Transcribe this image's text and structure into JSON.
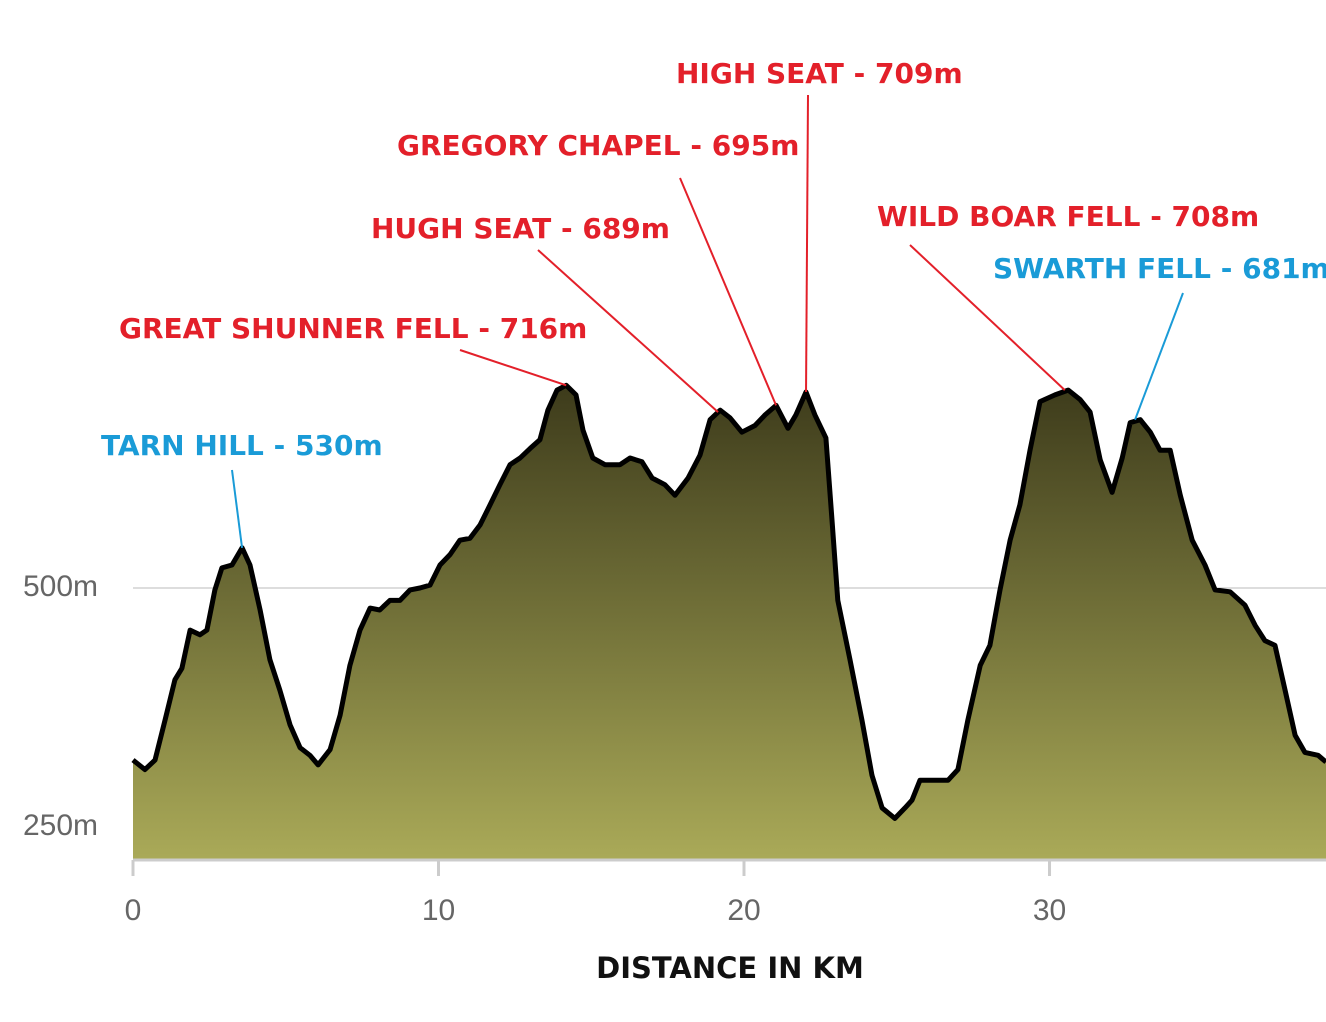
{
  "chart_data": {
    "type": "area",
    "x_label": "DISTANCE IN KM",
    "x": [
      0,
      0.39,
      0.72,
      1.05,
      1.37,
      1.6,
      1.87,
      2.19,
      2.42,
      2.68,
      2.91,
      3.24,
      3.57,
      3.83,
      4.16,
      4.48,
      4.81,
      5.14,
      5.47,
      5.79,
      6.06,
      6.45,
      6.78,
      7.1,
      7.43,
      7.76,
      8.08,
      8.41,
      8.74,
      9.07,
      9.39,
      9.72,
      10.05,
      10.38,
      10.7,
      11.03,
      11.36,
      11.69,
      12.01,
      12.34,
      12.67,
      13.0,
      13.32,
      13.58,
      13.88,
      14.18,
      14.5,
      14.73,
      15.05,
      15.45,
      15.94,
      16.27,
      16.66,
      16.99,
      17.41,
      17.74,
      18.17,
      18.56,
      18.89,
      19.22,
      19.54,
      19.93,
      20.36,
      20.69,
      21.05,
      21.44,
      21.7,
      22.03,
      22.32,
      22.68,
      22.88,
      23.07,
      23.47,
      23.86,
      24.19,
      24.52,
      24.94,
      25.27,
      25.5,
      25.76,
      26.25,
      26.68,
      27.0,
      27.33,
      27.73,
      28.05,
      28.38,
      28.71,
      29.03,
      29.36,
      29.69,
      30.18,
      30.61,
      31.0,
      31.33,
      31.66,
      32.05,
      32.38,
      32.64,
      32.97,
      33.3,
      33.62,
      33.95,
      34.28,
      34.67,
      35.09,
      35.42,
      35.91,
      36.4,
      36.73,
      37.05,
      37.38,
      37.71,
      38.04,
      38.36,
      38.79,
      39.05
    ],
    "values": [
      320,
      310,
      320,
      362,
      404,
      416,
      456,
      451,
      456,
      498,
      521,
      524,
      542,
      524,
      477,
      425,
      393,
      357,
      333,
      325,
      315,
      331,
      367,
      419,
      456,
      479,
      477,
      487,
      487,
      498,
      500,
      503,
      524,
      535,
      550,
      552,
      566,
      587,
      608,
      629,
      636,
      646,
      655,
      686,
      707,
      712,
      702,
      665,
      636,
      629,
      629,
      636,
      632,
      615,
      608,
      597,
      615,
      639,
      676,
      686,
      678,
      663,
      670,
      681,
      691,
      667,
      681,
      705,
      681,
      657,
      571,
      487,
      425,
      362,
      304,
      270,
      259,
      270,
      278,
      299,
      299,
      299,
      310,
      362,
      419,
      440,
      498,
      550,
      587,
      644,
      695,
      702,
      707,
      697,
      684,
      634,
      600,
      636,
      673,
      676,
      663,
      644,
      644,
      597,
      550,
      524,
      498,
      496,
      482,
      461,
      445,
      440,
      393,
      346,
      328,
      325,
      318
    ],
    "line_color": "#000000",
    "fill_gradient": [
      "#3d3b1b",
      "#aaaa58"
    ],
    "xlim": [
      0,
      39.05
    ],
    "ylim": [
      215.5,
      1115
    ],
    "xticks": [
      0,
      10,
      20,
      30
    ],
    "yticks": [
      {
        "value": 250,
        "label": "250m"
      },
      {
        "value": 500,
        "label": "500m"
      }
    ],
    "grid": true,
    "annotations": [
      {
        "text": "TARN HILL - 530m",
        "color": "#1a9bd7",
        "x": 3.57,
        "y": 542
      },
      {
        "text": "GREAT SHUNNER FELL - 716m",
        "color": "#e3202a",
        "x": 14.18,
        "y": 712
      },
      {
        "text": "HUGH SEAT - 689m",
        "color": "#e3202a",
        "x": 19.15,
        "y": 684
      },
      {
        "text": "GREGORY CHAPEL - 695m",
        "color": "#e3202a",
        "x": 21.05,
        "y": 691
      },
      {
        "text": "HIGH SEAT - 709m",
        "color": "#e3202a",
        "x": 22.03,
        "y": 705
      },
      {
        "text": "WILD BOAR FELL - 708m",
        "color": "#e3202a",
        "x": 30.5,
        "y": 707
      },
      {
        "text": "SWARTH FELL - 681m",
        "color": "#1a9bd7",
        "x": 32.8,
        "y": 676
      }
    ]
  }
}
